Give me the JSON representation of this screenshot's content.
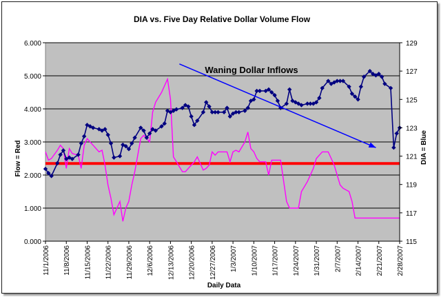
{
  "chart_data": {
    "type": "line",
    "title": "DIA vs. Five Day Relative Dollar Volume Flow",
    "xlabel": "Daily Data",
    "ylabel_left": "Flow = Red",
    "ylabel_right": "DIA = Blue",
    "ylim_left": [
      0,
      6000
    ],
    "ylim_right": [
      115,
      129
    ],
    "yticks_left": [
      "0.000",
      "1.000",
      "2.000",
      "3.000",
      "4.000",
      "5.000",
      "6.000"
    ],
    "yticks_right": [
      "115",
      "117",
      "119",
      "121",
      "123",
      "125",
      "127",
      "129"
    ],
    "x_tick_labels": [
      "11/1/2006",
      "11/8/2006",
      "11/15/2006",
      "11/22/2006",
      "11/29/2006",
      "12/6/2006",
      "12/13/2006",
      "12/20/2006",
      "12/27/2006",
      "1/3/2007",
      "1/10/2007",
      "1/17/2007",
      "1/24/2007",
      "1/31/2007",
      "2/7/2007",
      "2/14/2007",
      "2/21/2007",
      "2/28/2007"
    ],
    "x_range_days": [
      0,
      119
    ],
    "grid": true,
    "plot_background": "#c0c0c0",
    "annotation": {
      "text": "Waning Dollar Inflows",
      "arrow_from": {
        "x": 45,
        "y_right": 127.5
      },
      "arrow_to": {
        "x": 111,
        "y_right": 121.6
      }
    },
    "reference_line": {
      "name": "Flow baseline",
      "y": 2350,
      "axis": "left",
      "color": "#ff0000"
    },
    "series": [
      {
        "name": "DIA",
        "axis": "right",
        "color": "#000080",
        "marker": "diamond",
        "x": [
          0,
          1,
          2,
          4,
          5,
          6,
          7,
          8,
          9,
          11,
          12,
          13,
          14,
          15,
          16,
          18,
          19,
          20,
          21,
          22,
          23,
          25,
          26,
          27,
          28,
          29,
          30,
          32,
          33,
          34,
          35,
          36,
          37,
          39,
          40,
          41,
          42,
          43,
          44,
          46,
          47,
          48,
          49,
          50,
          51,
          53,
          54,
          55,
          56,
          57,
          58,
          60,
          61,
          62,
          63,
          64,
          65,
          67,
          68,
          69,
          70,
          71,
          72,
          74,
          75,
          76,
          77,
          78,
          79,
          81,
          82,
          83,
          84,
          85,
          86,
          88,
          89,
          90,
          91,
          92,
          93,
          95,
          96,
          97,
          98,
          99,
          100,
          102,
          103,
          104,
          105,
          106,
          107,
          109,
          110,
          111,
          112,
          113,
          114,
          116,
          117,
          118,
          119
        ],
        "values": [
          120.1,
          119.8,
          119.6,
          120.5,
          121.1,
          121.4,
          120.8,
          120.9,
          120.8,
          121.1,
          121.9,
          122.4,
          123.2,
          123.1,
          123.0,
          122.9,
          122.8,
          122.9,
          122.5,
          121.9,
          120.9,
          121.0,
          121.8,
          121.7,
          121.5,
          121.9,
          122.3,
          123.0,
          122.8,
          122.3,
          122.6,
          122.9,
          122.8,
          123.1,
          123.3,
          124.2,
          124.1,
          124.2,
          124.3,
          124.4,
          124.6,
          124.5,
          123.8,
          123.2,
          123.5,
          124.1,
          124.8,
          124.5,
          124.1,
          124.1,
          124.1,
          124.1,
          124.4,
          123.8,
          124.0,
          124.1,
          124.1,
          124.2,
          124.4,
          124.9,
          125.0,
          125.6,
          125.6,
          125.6,
          125.7,
          125.5,
          125.3,
          124.9,
          124.4,
          124.7,
          125.7,
          124.9,
          124.8,
          124.7,
          124.6,
          124.7,
          124.7,
          124.7,
          124.8,
          125.1,
          125.8,
          126.3,
          126.1,
          126.2,
          126.3,
          126.3,
          126.3,
          125.9,
          125.4,
          125.2,
          125.0,
          125.9,
          126.6,
          127.0,
          126.8,
          126.7,
          126.8,
          126.6,
          126.1,
          125.8,
          121.6,
          122.6,
          123.0
        ]
      },
      {
        "name": "Flow",
        "axis": "left",
        "color": "#ff00ff",
        "marker": "none",
        "x": [
          0,
          1,
          2,
          4,
          5,
          6,
          7,
          8,
          9,
          11,
          12,
          13,
          14,
          15,
          16,
          18,
          19,
          20,
          21,
          22,
          23,
          25,
          26,
          27,
          28,
          29,
          30,
          32,
          33,
          34,
          35,
          36,
          37,
          39,
          40,
          41,
          42,
          43,
          44,
          46,
          47,
          48,
          49,
          50,
          51,
          53,
          54,
          55,
          56,
          57,
          58,
          60,
          61,
          62,
          63,
          64,
          65,
          67,
          68,
          69,
          70,
          71,
          72,
          74,
          75,
          76,
          77,
          78,
          79,
          81,
          82,
          83,
          84,
          85,
          86,
          88,
          89,
          90,
          91,
          92,
          93,
          95,
          96,
          97,
          98,
          99,
          100,
          102,
          103,
          104,
          105,
          106,
          107,
          109,
          110,
          111,
          112,
          113,
          114,
          116,
          117,
          118,
          119
        ],
        "values": [
          2700,
          2450,
          2500,
          2750,
          2900,
          2800,
          2200,
          2800,
          2650,
          2600,
          2200,
          2900,
          3100,
          3000,
          2900,
          2700,
          2750,
          2300,
          1700,
          1300,
          800,
          1200,
          600,
          1000,
          1200,
          1700,
          2100,
          3100,
          3200,
          3100,
          3000,
          3900,
          4200,
          4500,
          4700,
          4900,
          4300,
          2550,
          2400,
          2100,
          2100,
          2200,
          2300,
          2400,
          2550,
          2150,
          2200,
          2300,
          2700,
          2600,
          2700,
          2700,
          2700,
          2400,
          2700,
          2750,
          2700,
          3000,
          3300,
          2800,
          2700,
          2500,
          2400,
          2400,
          2000,
          2450,
          2450,
          2450,
          2450,
          1200,
          1000,
          1000,
          1000,
          1000,
          1500,
          1800,
          2000,
          2200,
          2500,
          2600,
          2700,
          2700,
          2500,
          2300,
          2000,
          1700,
          1600,
          1500,
          1200,
          700,
          700,
          700,
          700,
          700,
          700,
          700,
          700,
          700,
          700,
          700,
          700,
          700,
          700
        ]
      }
    ]
  }
}
